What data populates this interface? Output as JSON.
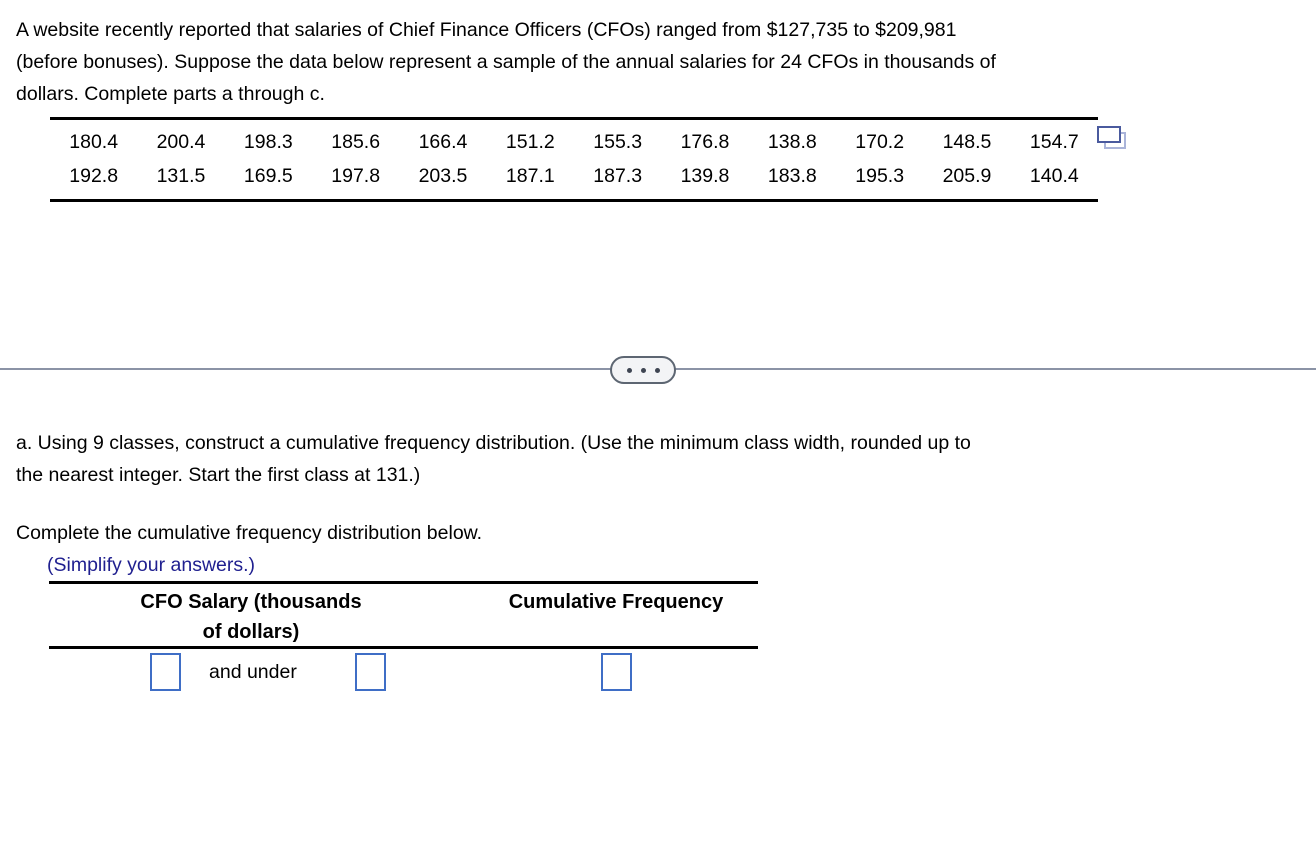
{
  "intro": {
    "lines": [
      "A website recently reported that salaries of Chief Finance Officers (CFOs) ranged from $127,735 to $209,981",
      "(before bonuses). Suppose the data below represent a sample of the annual salaries for 24 CFOs in thousands of",
      "dollars. Complete parts a through c."
    ]
  },
  "data_table": {
    "rows": [
      [
        "180.4",
        "200.4",
        "198.3",
        "185.6",
        "166.4",
        "151.2",
        "155.3",
        "176.8",
        "138.8",
        "170.2",
        "148.5",
        "154.7"
      ],
      [
        "192.8",
        "131.5",
        "169.5",
        "197.8",
        "203.5",
        "187.1",
        "187.3",
        "139.8",
        "183.8",
        "195.3",
        "205.9",
        "140.4"
      ]
    ],
    "copy_icon": "copy-data-icon"
  },
  "divider": {
    "toggle_icon": "ellipsis-icon"
  },
  "part_a": {
    "lines": [
      "a. Using 9 classes, construct a cumulative frequency distribution. (Use the minimum class width, rounded up to",
      "the nearest integer. Start the first class at 131.)"
    ]
  },
  "instruction": "Complete the cumulative frequency distribution below.",
  "hint": "(Simplify your answers.)",
  "answer_table": {
    "col1_header_line1": "CFO Salary (thousands",
    "col1_header_line2": "of dollars)",
    "col2_header": "Cumulative Frequency",
    "row_connector": "and under",
    "inputs": [
      "",
      "",
      ""
    ]
  },
  "colors": {
    "hint_blue": "#1f1f8f",
    "input_border_blue": "#3f6ec6",
    "divider_gray": "#8b93a6",
    "copy_icon_dark": "#4a5a9e",
    "copy_icon_light": "#aab4d9",
    "rule_black": "#000000"
  }
}
